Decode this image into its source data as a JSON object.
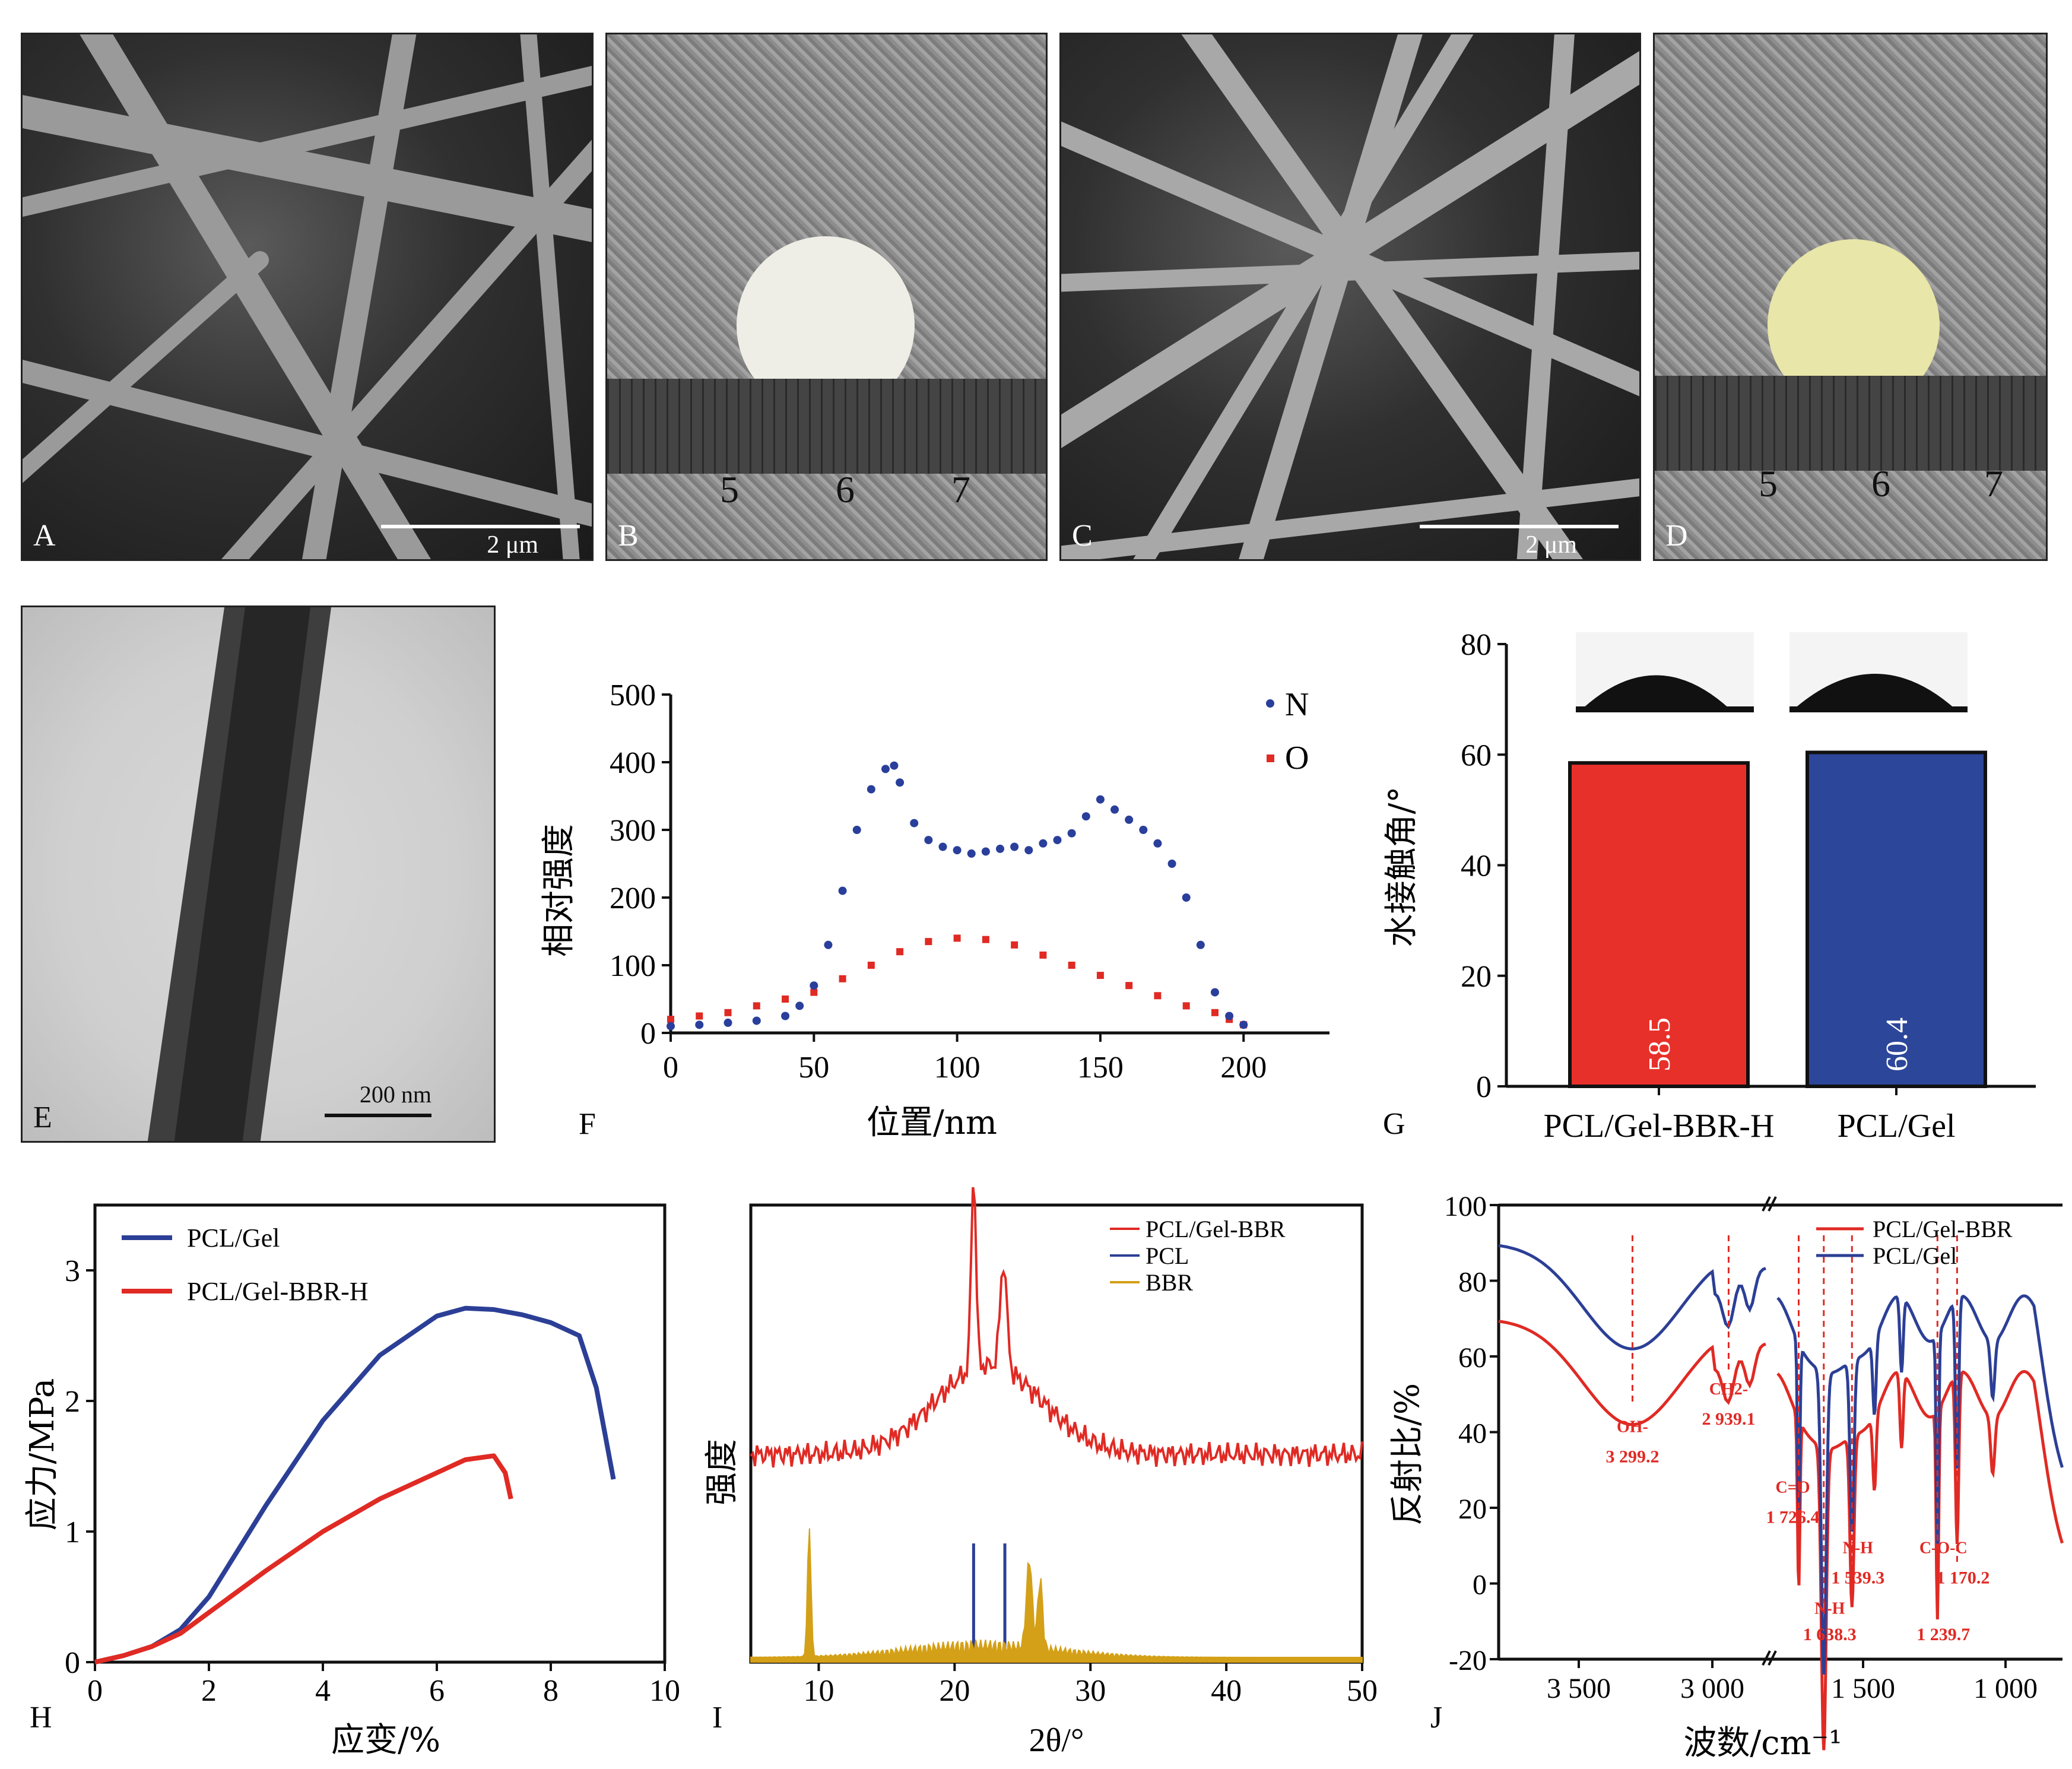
{
  "panels": {
    "A": {
      "label": "A",
      "scale": "2 μm"
    },
    "B": {
      "label": "B",
      "ruler_ticks": [
        "5",
        "6",
        "7"
      ]
    },
    "C": {
      "label": "C",
      "scale": "2 μm"
    },
    "D": {
      "label": "D",
      "ruler_ticks": [
        "5",
        "6",
        "7"
      ]
    },
    "E": {
      "label": "E",
      "scale": "200 nm"
    },
    "F": {
      "label": "F"
    },
    "G": {
      "label": "G"
    },
    "H": {
      "label": "H"
    },
    "I": {
      "label": "I"
    },
    "J": {
      "label": "J"
    }
  },
  "chart_data": [
    {
      "id": "F",
      "type": "scatter",
      "xlabel": "位置/nm",
      "ylabel": "相对强度",
      "xlim": [
        0,
        230
      ],
      "ylim": [
        0,
        500
      ],
      "xticks": [
        0,
        50,
        100,
        150,
        200
      ],
      "yticks": [
        0,
        100,
        200,
        300,
        400,
        500
      ],
      "legend_position": "top-right",
      "series": [
        {
          "name": "N",
          "color": "#2a3f9b",
          "x": [
            0,
            10,
            20,
            30,
            40,
            45,
            50,
            55,
            60,
            65,
            70,
            75,
            78,
            80,
            85,
            90,
            95,
            100,
            105,
            110,
            115,
            120,
            125,
            130,
            135,
            140,
            145,
            150,
            155,
            160,
            165,
            170,
            175,
            180,
            185,
            190,
            195,
            200
          ],
          "y": [
            10,
            12,
            15,
            18,
            25,
            40,
            70,
            130,
            210,
            300,
            360,
            390,
            395,
            370,
            310,
            285,
            275,
            270,
            265,
            268,
            272,
            275,
            270,
            280,
            285,
            295,
            320,
            345,
            330,
            315,
            300,
            280,
            250,
            200,
            130,
            60,
            25,
            12
          ]
        },
        {
          "name": "O",
          "color": "#e02a24",
          "x": [
            0,
            10,
            20,
            30,
            40,
            50,
            60,
            70,
            80,
            90,
            100,
            110,
            120,
            130,
            140,
            150,
            160,
            170,
            180,
            190,
            195,
            200
          ],
          "y": [
            20,
            25,
            30,
            40,
            50,
            60,
            80,
            100,
            120,
            135,
            140,
            138,
            130,
            115,
            100,
            85,
            70,
            55,
            40,
            30,
            20,
            12
          ]
        }
      ]
    },
    {
      "id": "G",
      "type": "bar",
      "ylabel": "水接触角/°",
      "categories": [
        "PCL/Gel-BBR-H",
        "PCL/Gel"
      ],
      "values": [
        58.5,
        60.4
      ],
      "value_labels": [
        "58.5",
        "60.4"
      ],
      "colors": [
        "#e8302a",
        "#2c4699"
      ],
      "ylim": [
        0,
        80
      ],
      "yticks": [
        0,
        20,
        40,
        60,
        80
      ]
    },
    {
      "id": "H",
      "type": "line",
      "xlabel": "应变/%",
      "ylabel": "应力/MPa",
      "xlim": [
        0,
        10
      ],
      "ylim": [
        0,
        3.5
      ],
      "xticks": [
        0,
        2,
        4,
        6,
        8,
        10
      ],
      "yticks": [
        0,
        1,
        2,
        3
      ],
      "legend_position": "top-left",
      "series": [
        {
          "name": "PCL/Gel",
          "color": "#2c3f96",
          "x": [
            0,
            0.5,
            1,
            1.5,
            2,
            3,
            4,
            5,
            6,
            6.5,
            7,
            7.5,
            8,
            8.5,
            8.8,
            9.1
          ],
          "y": [
            0,
            0.05,
            0.12,
            0.25,
            0.5,
            1.2,
            1.85,
            2.35,
            2.65,
            2.71,
            2.7,
            2.66,
            2.6,
            2.5,
            2.1,
            1.4
          ]
        },
        {
          "name": "PCL/Gel-BBR-H",
          "color": "#e02a24",
          "x": [
            0,
            0.5,
            1,
            1.5,
            2,
            3,
            4,
            5,
            6,
            6.5,
            7,
            7.2,
            7.3
          ],
          "y": [
            0,
            0.05,
            0.12,
            0.22,
            0.38,
            0.7,
            1.0,
            1.25,
            1.45,
            1.55,
            1.58,
            1.45,
            1.25
          ]
        }
      ]
    },
    {
      "id": "I",
      "type": "line",
      "xlabel": "2θ/°",
      "ylabel": "强度",
      "xlim": [
        5,
        50
      ],
      "xticks": [
        10,
        20,
        30,
        40,
        50
      ],
      "legend_position": "top-right",
      "series": [
        {
          "name": "PCL/Gel-BBR",
          "color": "#e02a24"
        },
        {
          "name": "PCL",
          "color": "#2c3f96"
        },
        {
          "name": "BBR",
          "color": "#d4a017"
        }
      ]
    },
    {
      "id": "J",
      "type": "line",
      "xlabel": "波数/cm⁻¹",
      "ylabel": "反射比/%",
      "ylim": [
        -20,
        100
      ],
      "yticks": [
        -20,
        0,
        20,
        40,
        60,
        80,
        100
      ],
      "xticks": [
        "3 500",
        "3 000",
        "1 500",
        "1 000"
      ],
      "legend_position": "top-right",
      "series": [
        {
          "name": "PCL/Gel-BBR",
          "color": "#e02a24"
        },
        {
          "name": "PCL/Gel",
          "color": "#2c3f96"
        }
      ],
      "annotations": [
        {
          "text": "OH-",
          "value": "3 299.2"
        },
        {
          "text": "CH2-",
          "value": "2 939.1"
        },
        {
          "text": "C=O",
          "value": "1 726.4"
        },
        {
          "text": "N-H",
          "value": "1 638.3"
        },
        {
          "text": "N-H",
          "value": "1 539.3"
        },
        {
          "text": "C-O-C",
          "value": "1 239.7"
        },
        {
          "text": "",
          "value": "1 170.2"
        }
      ]
    }
  ]
}
